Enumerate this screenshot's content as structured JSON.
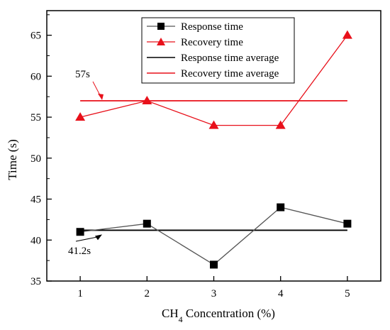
{
  "chart_data": {
    "type": "line",
    "x": [
      1,
      2,
      3,
      4,
      5
    ],
    "xticks": [
      "1",
      "2",
      "3",
      "4",
      "5"
    ],
    "yticks": [
      "35",
      "40",
      "45",
      "50",
      "55",
      "60",
      "65"
    ],
    "xlabel_main": "CH",
    "xlabel_sub": "4",
    "xlabel_rest": " Concentration (%)",
    "ylabel": "Time (s)",
    "xlim": [
      0.5,
      5.5
    ],
    "ylim": [
      35,
      68
    ],
    "grid": false,
    "legend_position": "top-center",
    "series": [
      {
        "name": "Response time",
        "values": [
          41,
          42,
          37,
          44,
          42
        ],
        "color": "#000000",
        "line_color": "#555555",
        "marker": "square"
      },
      {
        "name": "Recovery time",
        "values": [
          55,
          57,
          54,
          54,
          65
        ],
        "color": "#e8101a",
        "line_color": "#e8101a",
        "marker": "triangle"
      }
    ],
    "averages": [
      {
        "name": "Response time average",
        "value": 41.2,
        "color": "#000000"
      },
      {
        "name": "Recovery time average",
        "value": 57,
        "color": "#e8101a"
      }
    ],
    "annotations": [
      {
        "text": "57s",
        "target_series": "Recovery time average",
        "color": "#e8101a"
      },
      {
        "text": "41.2s",
        "target_series": "Response time average",
        "color": "#000000"
      }
    ]
  }
}
